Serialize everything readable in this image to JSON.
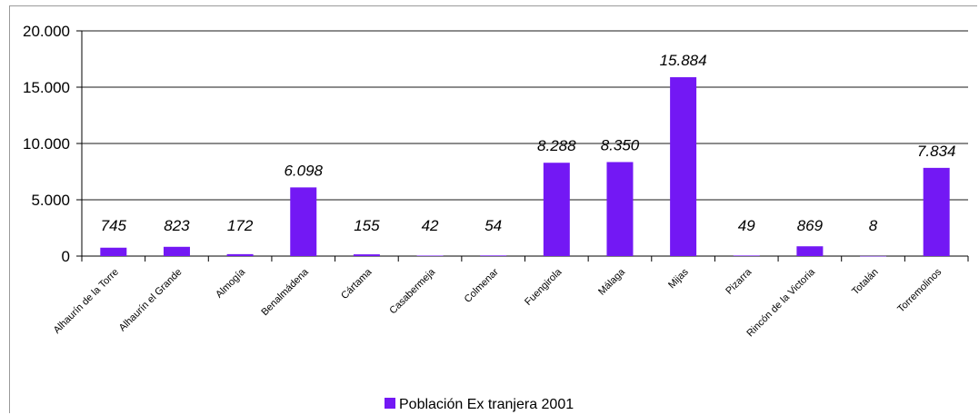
{
  "chart_data": {
    "type": "bar",
    "categories": [
      "Alhaurín de la Torre",
      "Alhaurín el Grande",
      "Almogía",
      "Benalmádena",
      "Cártama",
      "Casabermeja",
      "Colmenar",
      "Fuengirola",
      "Málaga",
      "Mijas",
      "Pizarra",
      "Rincón de la Victoria",
      "Totalán",
      "Torremolinos"
    ],
    "series": [
      {
        "name": "Población Ex tranjera 2001",
        "values": [
          745,
          823,
          172,
          6098,
          155,
          42,
          54,
          8288,
          8350,
          15884,
          49,
          869,
          8,
          7834
        ],
        "labels": [
          "745",
          "823",
          "172",
          "6.098",
          "155",
          "42",
          "54",
          "8.288",
          "8.350",
          "15.884",
          "49",
          "869",
          "8",
          "7.834"
        ],
        "color": "#7318f4"
      }
    ],
    "ylim": [
      0,
      20000
    ],
    "yticks": [
      0,
      5000,
      10000,
      15000,
      20000
    ],
    "ytick_labels": [
      "0",
      "5.000",
      "10.000",
      "15.000",
      "20.000"
    ],
    "grid": true,
    "legend_position": "bottom"
  }
}
